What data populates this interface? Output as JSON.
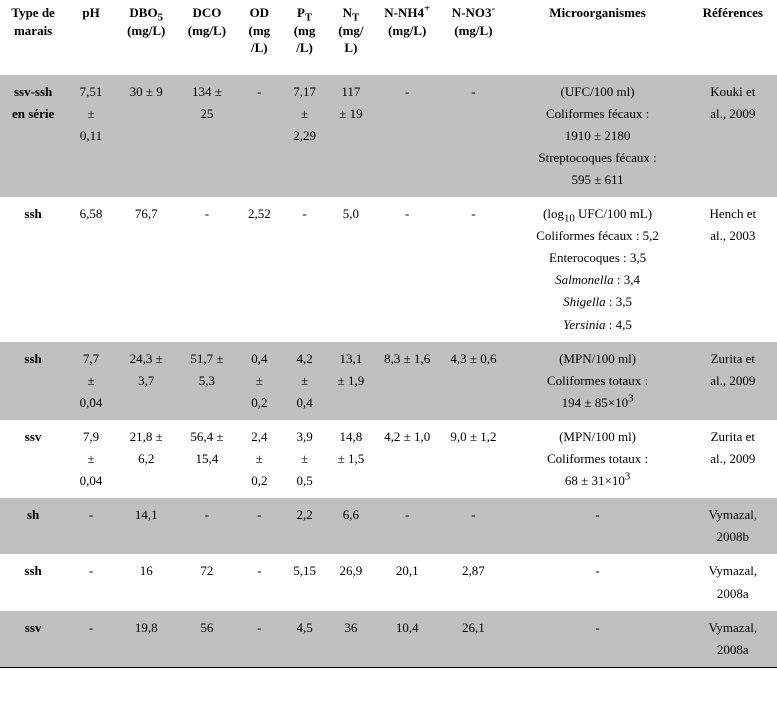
{
  "headers": {
    "type": "Type de<br>marais",
    "ph": "pH",
    "dbo": "DBO<sub>5</sub><br>(mg/L)",
    "dco": "DCO<br>(mg/L)",
    "od": "OD<br>(mg<br>/L)",
    "pt": "P<sub>T</sub><br>(mg<br>/L)",
    "nt": "N<sub>T</sub><br>(mg/<br>L)",
    "nnh4": "N-NH4<sup>+</sup><br>(mg/L)",
    "nno3": "N-NO3<sup>-</sup><br>(mg/L)",
    "micro": "Microorganismes",
    "ref": "Références"
  },
  "rows": [
    {
      "band": "odd",
      "type": "ssv-ssh<br>en série",
      "ph": "7,51<br>±<br>0,11",
      "dbo": "30 ± 9",
      "dco": "134 ±<br>25",
      "od": "-",
      "pt": "7,17<br>±<br>2,29",
      "nt": "117<br>± 19",
      "nnh4": "-",
      "nno3": "-",
      "micro": "(UFC/100 ml)<br>Coliformes fécaux :<br>1910 ± 2180<br>Streptocoques fécaux :<br>595 ± 611",
      "ref": "Kouki et<br>al., 2009"
    },
    {
      "band": "even",
      "type": "ssh",
      "ph": "6,58",
      "dbo": "76,7",
      "dco": "-",
      "od": "2,52",
      "pt": "-",
      "nt": "5,0",
      "nnh4": "-",
      "nno3": "-",
      "micro": "(log<sub>10</sub> UFC/100 mL)<br>Coliformes fécaux : 5,2<br>Enterocoques : 3,5<br><span class=\"it\">Salmonella</span> : 3,4<br><span class=\"it\">Shigella</span> : 3,5<br><span class=\"it\">Yersinia</span> : 4,5",
      "ref": "Hench et<br>al., 2003"
    },
    {
      "band": "odd",
      "type": "ssh",
      "ph": "7,7<br>±<br>0,04",
      "dbo": "24,3 ±<br>3,7",
      "dco": "51,7 ±<br>5,3",
      "od": "0,4<br>±<br>0,2",
      "pt": "4,2<br>±<br>0,4",
      "nt": "13,1<br>± 1,9",
      "nnh4": "8,3 ± 1,6",
      "nno3": "4,3 ± 0,6",
      "micro": "(MPN/100 ml)<br>Coliformes totaux :<br>194 ± 85×10<sup>3</sup>",
      "ref": "Zurita et<br>al., 2009"
    },
    {
      "band": "even",
      "type": "ssv",
      "ph": "7,9<br>±<br>0,04",
      "dbo": "21,8 ±<br>6,2",
      "dco": "56,4 ±<br>15,4",
      "od": "2,4<br>±<br>0,2",
      "pt": "3,9<br>±<br>0,5",
      "nt": "14,8<br>± 1,5",
      "nnh4": "4,2 ± 1,0",
      "nno3": "9,0 ± 1,2",
      "micro": "(MPN/100 ml)<br>Coliformes totaux :<br>68 ± 31×10<sup>3</sup>",
      "ref": "Zurita et<br>al., 2009"
    },
    {
      "band": "odd",
      "type": "sh",
      "ph": "-",
      "dbo": "14,1",
      "dco": "-",
      "od": "-",
      "pt": "2,2",
      "nt": "6,6",
      "nnh4": "-",
      "nno3": "-",
      "micro": "-",
      "ref": "Vymazal,<br>2008b"
    },
    {
      "band": "even",
      "type": "ssh",
      "ph": "-",
      "dbo": "16",
      "dco": "72",
      "od": "-",
      "pt": "5,15",
      "nt": "26,9",
      "nnh4": "20,1",
      "nno3": "2,87",
      "micro": "-",
      "ref": "Vymazal,<br>2008a"
    },
    {
      "band": "odd",
      "type": "ssv",
      "ph": "-",
      "dbo": "19,8",
      "dco": "56",
      "od": "-",
      "pt": "4,5",
      "nt": "36",
      "nnh4": "10,4",
      "nno3": "26,1",
      "micro": "-",
      "ref": "Vymazal,<br>2008a"
    }
  ]
}
